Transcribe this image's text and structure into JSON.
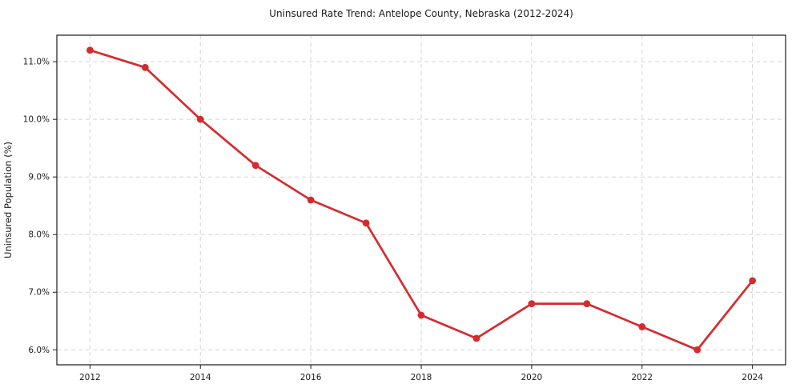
{
  "chart": {
    "title": "Uninsured Rate Trend: Antelope County, Nebraska (2012-2024)",
    "ylabel": "Uninsured Population (%)"
  },
  "chart_data": {
    "type": "line",
    "title": "Uninsured Rate Trend: Antelope County, Nebraska (2012-2024)",
    "xlabel": "",
    "ylabel": "Uninsured Population (%)",
    "x": [
      2012,
      2013,
      2014,
      2015,
      2016,
      2017,
      2018,
      2019,
      2020,
      2021,
      2022,
      2023,
      2024
    ],
    "values": [
      11.2,
      10.9,
      10.0,
      9.2,
      8.6,
      8.2,
      6.6,
      6.2,
      6.8,
      6.8,
      6.4,
      6.0,
      7.2
    ],
    "xlim": [
      2011.4,
      2024.6
    ],
    "ylim": [
      5.74,
      11.46
    ],
    "x_ticks": [
      2012,
      2014,
      2016,
      2018,
      2020,
      2022,
      2024
    ],
    "x_tick_labels": [
      "2012",
      "2014",
      "2016",
      "2018",
      "2020",
      "2022",
      "2024"
    ],
    "y_ticks": [
      6.0,
      7.0,
      8.0,
      9.0,
      10.0,
      11.0
    ],
    "y_tick_labels": [
      "6.0%",
      "7.0%",
      "8.0%",
      "9.0%",
      "10.0%",
      "11.0%"
    ],
    "grid": true,
    "legend": "none",
    "line_color": "#d62b2e",
    "marker": "circle",
    "grid_color": "#d3d3d3",
    "spine_color": "#1a1a1a",
    "text_color": "#1a1a1a"
  }
}
